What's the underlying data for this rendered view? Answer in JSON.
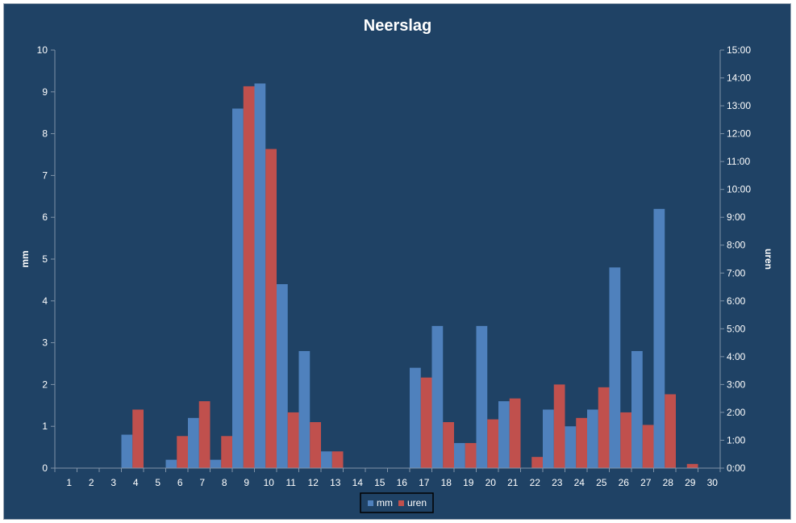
{
  "chart_data": {
    "type": "bar",
    "title": "Neerslag",
    "ylabel": "mm",
    "y2label": "uren",
    "categories": [
      "1",
      "2",
      "3",
      "4",
      "5",
      "6",
      "7",
      "8",
      "9",
      "10",
      "11",
      "12",
      "13",
      "14",
      "15",
      "16",
      "17",
      "18",
      "19",
      "20",
      "21",
      "22",
      "23",
      "24",
      "25",
      "26",
      "27",
      "28",
      "29",
      "30"
    ],
    "ylim": [
      0,
      10
    ],
    "y_ticks": [
      "0",
      "1",
      "2",
      "3",
      "4",
      "5",
      "6",
      "7",
      "8",
      "9",
      "10"
    ],
    "y2lim_hours": [
      0,
      15
    ],
    "y2_ticks": [
      "0:00",
      "1:00",
      "2:00",
      "3:00",
      "4:00",
      "5:00",
      "6:00",
      "7:00",
      "8:00",
      "9:00",
      "10:00",
      "11:00",
      "12:00",
      "13:00",
      "14:00",
      "15:00"
    ],
    "series": [
      {
        "name": "mm",
        "axis": "left",
        "color": "#4f81bd",
        "values": [
          0,
          0,
          0,
          0.8,
          0,
          0.2,
          1.2,
          0.2,
          8.6,
          9.2,
          4.4,
          2.8,
          0.4,
          0,
          0,
          0,
          2.4,
          3.4,
          0.6,
          3.4,
          1.6,
          0,
          1.4,
          1.0,
          1.4,
          4.8,
          2.8,
          6.2,
          0,
          0
        ]
      },
      {
        "name": "uren",
        "axis": "right",
        "color": "#c0504d",
        "values": [
          0,
          0,
          0,
          2.1,
          0,
          1.15,
          2.4,
          1.15,
          13.7,
          11.45,
          2.0,
          1.65,
          0.6,
          0,
          0,
          0,
          3.25,
          1.65,
          0.9,
          1.75,
          2.5,
          0.4,
          3.0,
          1.8,
          2.9,
          2.0,
          1.55,
          2.65,
          0.15,
          0
        ]
      }
    ],
    "legend_position": "bottom",
    "grid": false
  }
}
